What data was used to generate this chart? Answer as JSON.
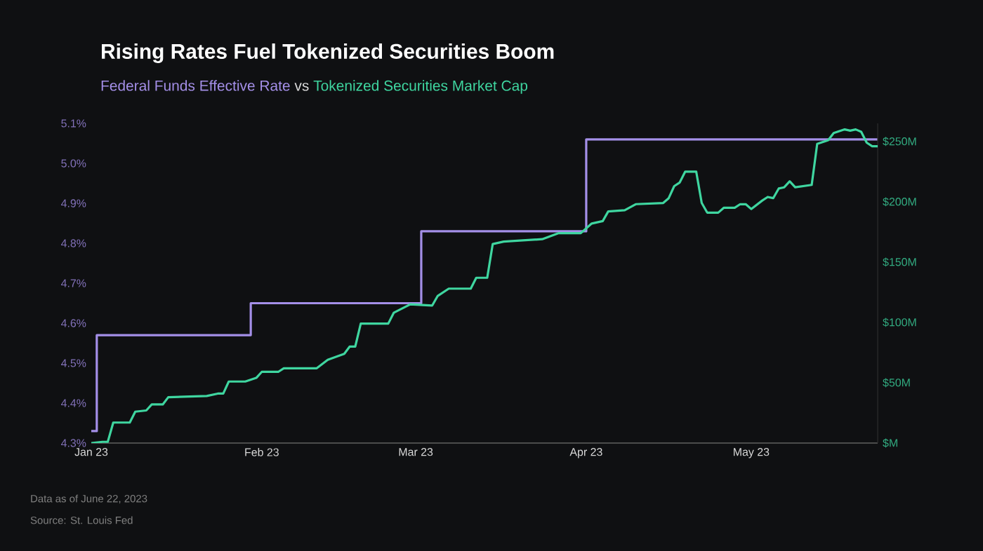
{
  "chart_data": {
    "type": "line",
    "title": "Rising Rates Fuel Tokenized Securities Boom",
    "subtitle": "vs",
    "xlim": [
      "2023-01-01",
      "2023-05-24"
    ],
    "xticks": [
      {
        "value": "2023-01-01",
        "label": "Jan 23"
      },
      {
        "value": "2023-02-01",
        "label": "Feb 23"
      },
      {
        "value": "2023-03-01",
        "label": "Mar 23"
      },
      {
        "value": "2023-04-01",
        "label": "Apr 23"
      },
      {
        "value": "2023-05-01",
        "label": "May 23"
      }
    ],
    "ylim": [
      4.3,
      5.1
    ],
    "yticks": [
      {
        "value": 4.3,
        "label": "4.3%"
      },
      {
        "value": 4.4,
        "label": "4.4%"
      },
      {
        "value": 4.5,
        "label": "4.5%"
      },
      {
        "value": 4.6,
        "label": "4.6%"
      },
      {
        "value": 4.7,
        "label": "4.7%"
      },
      {
        "value": 4.8,
        "label": "4.8%"
      },
      {
        "value": 4.9,
        "label": "4.9%"
      },
      {
        "value": 5.0,
        "label": "5.0%"
      },
      {
        "value": 5.1,
        "label": "5.1%"
      }
    ],
    "y2lim": [
      0,
      265
    ],
    "y2ticks": [
      {
        "value": 0,
        "label": "$M"
      },
      {
        "value": 50,
        "label": "$50M"
      },
      {
        "value": 100,
        "label": "$100M"
      },
      {
        "value": 150,
        "label": "$150M"
      },
      {
        "value": 200,
        "label": "$200M"
      },
      {
        "value": 250,
        "label": "$250M"
      }
    ],
    "series": [
      {
        "name": "Federal Funds Effective Rate",
        "type": "step",
        "color": "#a48fe8",
        "x": [
          "2023-01-01",
          "2023-01-02",
          "2023-01-30",
          "2023-03-02",
          "2023-04-01",
          "2023-05-24"
        ],
        "values": [
          4.33,
          4.57,
          4.65,
          4.83,
          5.06,
          5.06
        ]
      },
      {
        "name": "Tokenized Securities Market Cap",
        "type": "line",
        "axis": "y2",
        "color": "#3fd6a0",
        "x": [
          "2023-01-01",
          "2023-01-03",
          "2023-01-04",
          "2023-01-05",
          "2023-01-08",
          "2023-01-09",
          "2023-01-11",
          "2023-01-12",
          "2023-01-14",
          "2023-01-15",
          "2023-01-22",
          "2023-01-24",
          "2023-01-25",
          "2023-01-26",
          "2023-01-29",
          "2023-01-31",
          "2023-02-01",
          "2023-02-04",
          "2023-02-05",
          "2023-02-11",
          "2023-02-13",
          "2023-02-16",
          "2023-02-17",
          "2023-02-18",
          "2023-02-19",
          "2023-02-24",
          "2023-02-25",
          "2023-02-28",
          "2023-03-04",
          "2023-03-05",
          "2023-03-07",
          "2023-03-11",
          "2023-03-12",
          "2023-03-14",
          "2023-03-15",
          "2023-03-17",
          "2023-03-24",
          "2023-03-27",
          "2023-03-31",
          "2023-04-02",
          "2023-04-04",
          "2023-04-05",
          "2023-04-08",
          "2023-04-10",
          "2023-04-15",
          "2023-04-16",
          "2023-04-17",
          "2023-04-18",
          "2023-04-19",
          "2023-04-21",
          "2023-04-22",
          "2023-04-23",
          "2023-04-25",
          "2023-04-26",
          "2023-04-28",
          "2023-04-29",
          "2023-04-30",
          "2023-05-01",
          "2023-05-03",
          "2023-05-04",
          "2023-05-05",
          "2023-05-06",
          "2023-05-07",
          "2023-05-08",
          "2023-05-09",
          "2023-05-12",
          "2023-05-13",
          "2023-05-15",
          "2023-05-16",
          "2023-05-18",
          "2023-05-19",
          "2023-05-20",
          "2023-05-21",
          "2023-05-22",
          "2023-05-23",
          "2023-05-24"
        ],
        "values": [
          0,
          1,
          1,
          17,
          17,
          26,
          27,
          32,
          32,
          38,
          39,
          41,
          41,
          51,
          51,
          54,
          59,
          59,
          62,
          62,
          69,
          74,
          80,
          80,
          99,
          99,
          108,
          115,
          114,
          122,
          128,
          128,
          137,
          137,
          165,
          167,
          169,
          174,
          174,
          182,
          184,
          192,
          193,
          198,
          199,
          203,
          213,
          216,
          225,
          225,
          199,
          191,
          191,
          195,
          195,
          198,
          198,
          194,
          201,
          204,
          203,
          211,
          212,
          217,
          212,
          214,
          248,
          251,
          257,
          260,
          259,
          260,
          258,
          249,
          246,
          246
        ]
      }
    ],
    "annotations": [
      "Data as of June 22, 2023",
      "Source: St. Louis Fed"
    ]
  }
}
